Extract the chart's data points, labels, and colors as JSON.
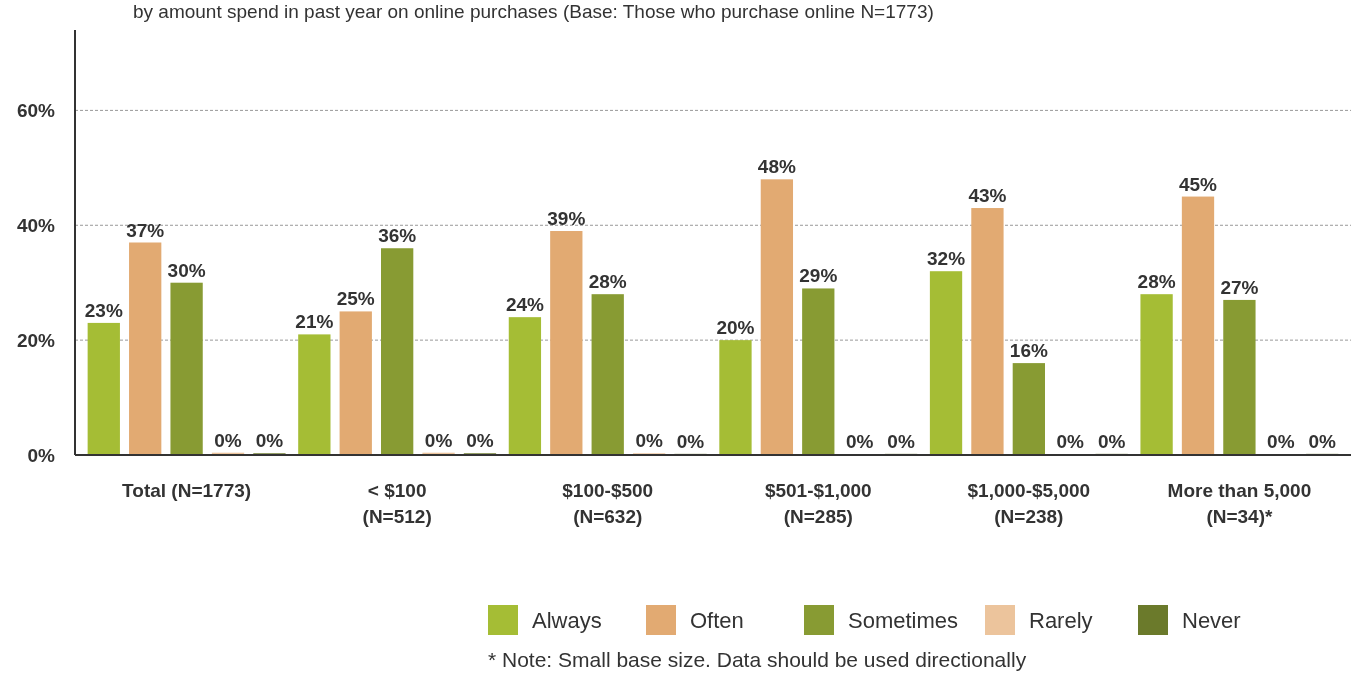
{
  "chart_data": {
    "type": "bar",
    "subtitle": "by amount spend in past year on online purchases (Base: Those who purchase online N=1773)",
    "categories": [
      "Total (N=1773)",
      "< $100\n(N=512)",
      "$100-$500\n(N=632)",
      "$501-$1,000\n(N=285)",
      "$1,000-$5,000\n(N=238)",
      "More than 5,000\n(N=34)*"
    ],
    "series": [
      {
        "name": "Always",
        "color": "#a5bd35",
        "values": [
          23,
          21,
          24,
          20,
          32,
          28
        ],
        "value_labels": [
          "23%",
          "21%",
          "24%",
          "20%",
          "32%",
          "28%"
        ]
      },
      {
        "name": "Often",
        "color": "#e2aa72",
        "values": [
          37,
          25,
          39,
          48,
          43,
          45
        ],
        "value_labels": [
          "37%",
          "25%",
          "39%",
          "48%",
          "43%",
          "45%"
        ]
      },
      {
        "name": "Sometimes",
        "color": "#889b33",
        "values": [
          30,
          36,
          28,
          29,
          16,
          27
        ],
        "value_labels": [
          "30%",
          "36%",
          "28%",
          "29%",
          "16%",
          "27%"
        ]
      },
      {
        "name": "Rarely",
        "color": "#ecc49c",
        "values": [
          0.4,
          0.4,
          0.3,
          0.1,
          0.1,
          0.1
        ],
        "value_labels": [
          "0%",
          "0%",
          "0%",
          "0%",
          "0%",
          "0%"
        ]
      },
      {
        "name": "Never",
        "color": "#6b7a2b",
        "values": [
          0.3,
          0.3,
          0.2,
          0.2,
          0.2,
          0.2
        ],
        "value_labels": [
          "0%",
          "0%",
          "0%",
          "0%",
          "0%",
          "0%"
        ]
      }
    ],
    "ylim": [
      0,
      74
    ],
    "yticks": [
      {
        "value": 0,
        "label": "0%"
      },
      {
        "value": 20,
        "label": "20%"
      },
      {
        "value": 40,
        "label": "40%"
      },
      {
        "value": 60,
        "label": "60%"
      }
    ],
    "grid": "y",
    "legend": "bottom",
    "annotations": [
      "* Note: Small base size. Data should be used directionally"
    ]
  }
}
